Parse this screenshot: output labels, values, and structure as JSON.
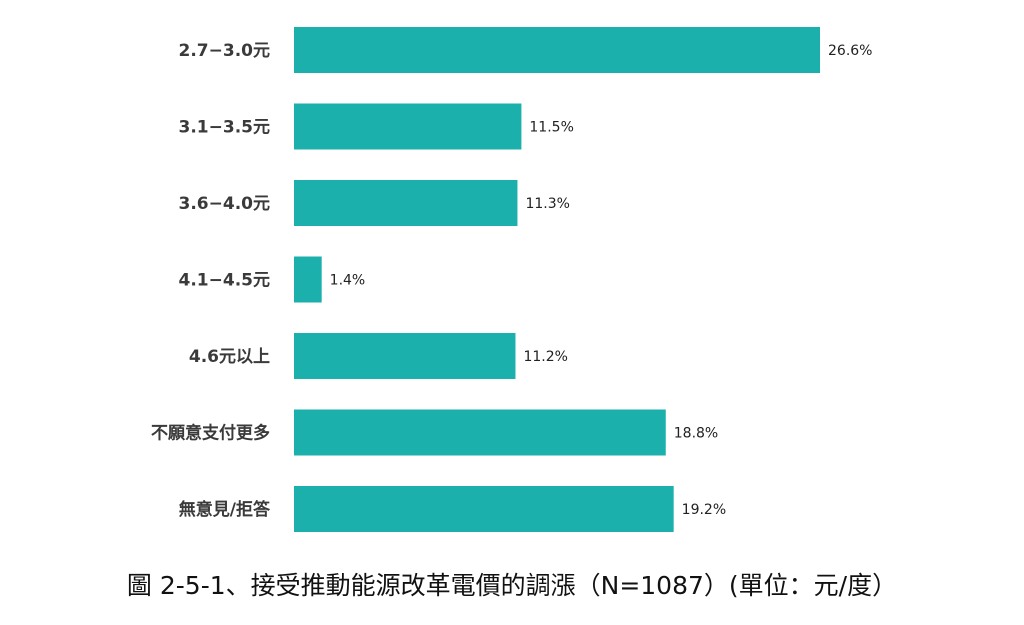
{
  "chart_data": {
    "type": "bar",
    "orientation": "horizontal",
    "title": "圖 2-5-1、接受推動能源改革電價的調漲（N=1087）(單位：元/度）",
    "categories": [
      "2.7−3.0元",
      "3.1−3.5元",
      "3.6−4.0元",
      "4.1−4.5元",
      "4.6元以上",
      "不願意支付更多",
      "無意見/拒答"
    ],
    "values": [
      26.6,
      11.5,
      11.3,
      1.4,
      11.2,
      18.8,
      19.2
    ],
    "value_labels": [
      "26.6%",
      "11.5%",
      "11.3%",
      "1.4%",
      "11.2%",
      "18.8%",
      "19.2%"
    ],
    "xlim": [
      0,
      28
    ],
    "grid": false,
    "legend": "none",
    "bar_color": "#1bb0ac"
  }
}
